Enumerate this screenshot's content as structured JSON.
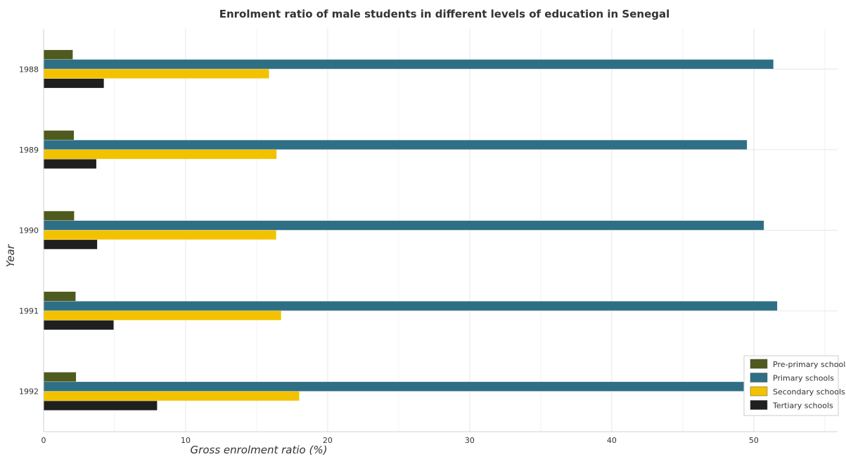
{
  "chart_data": {
    "type": "bar",
    "orientation": "horizontal",
    "title": "Enrolment ratio of male students in different levels of education in Senegal",
    "xlabel": "Gross enrolment ratio (%)",
    "ylabel": "Year",
    "xlim": [
      0,
      55.9
    ],
    "xticks": [
      0,
      10,
      20,
      30,
      40,
      50
    ],
    "grid": true,
    "legend_position": "bottom-right",
    "categories": [
      "1988",
      "1989",
      "1990",
      "1991",
      "1992"
    ],
    "series": [
      {
        "name": "Pre-primary schools",
        "color": "#4f5a1e",
        "values": [
          2.05,
          2.13,
          2.15,
          2.25,
          2.28
        ]
      },
      {
        "name": "Primary schools",
        "color": "#2f6f85",
        "values": [
          51.38,
          49.52,
          50.71,
          51.65,
          53.28
        ]
      },
      {
        "name": "Secondary schools",
        "color": "#f2c200",
        "values": [
          15.87,
          16.4,
          16.37,
          16.72,
          18.0
        ]
      },
      {
        "name": "Tertiary schools",
        "color": "#1f1f1f",
        "values": [
          4.24,
          3.71,
          3.77,
          4.93,
          7.99
        ]
      }
    ]
  }
}
